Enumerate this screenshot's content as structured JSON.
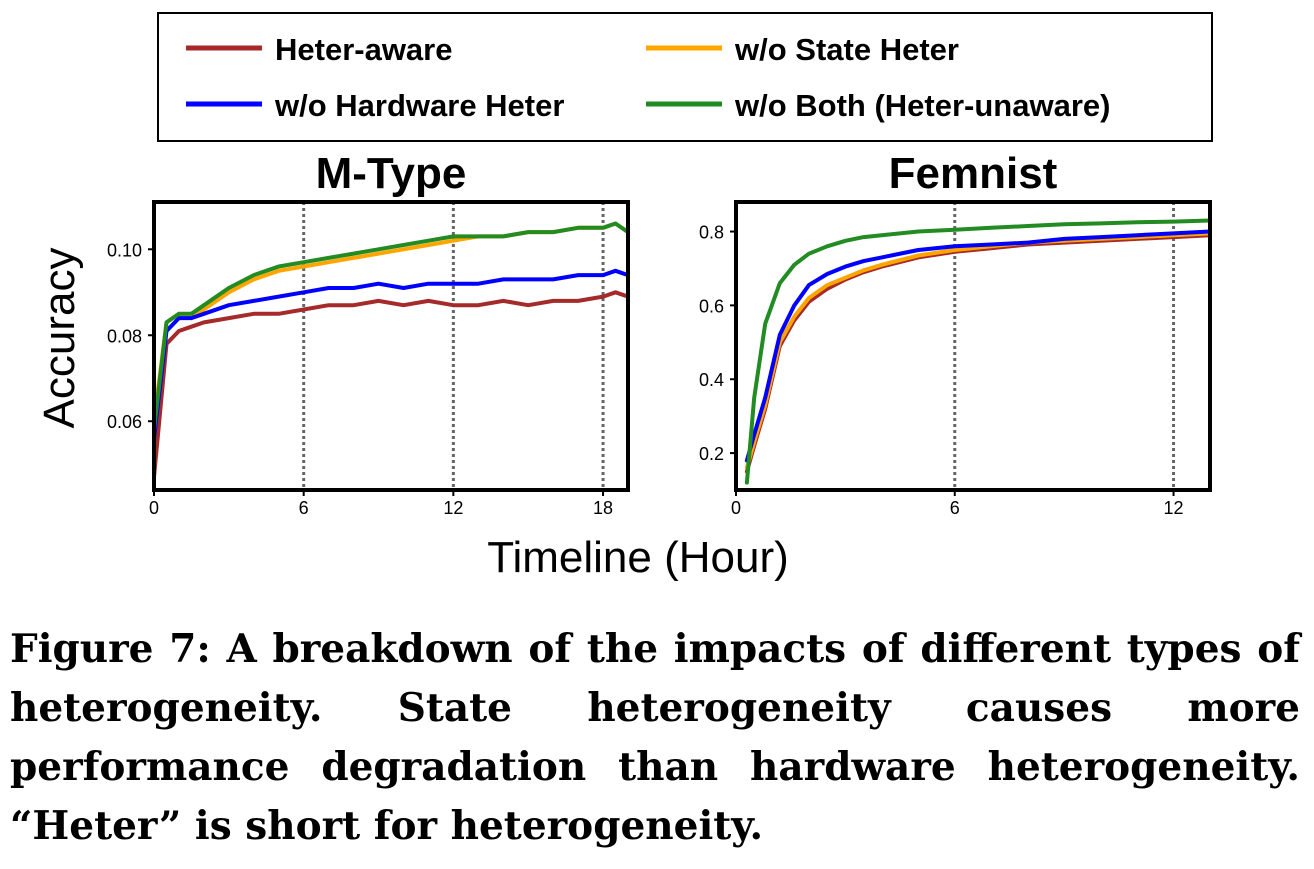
{
  "legend": {
    "items": [
      {
        "label": "Heter-aware",
        "color": "#a52a2a"
      },
      {
        "label": "w/o State Heter",
        "color": "#ffa500"
      },
      {
        "label": "w/o Hardware Heter",
        "color": "#0000ff"
      },
      {
        "label": "w/o Both (Heter-unaware)",
        "color": "#228b22"
      }
    ]
  },
  "shared_ylabel": "Accuracy",
  "shared_xlabel": "Timeline (Hour)",
  "chart_data": [
    {
      "type": "line",
      "title": "M-Type",
      "xlim": [
        0,
        19
      ],
      "ylim": [
        0.044,
        0.111
      ],
      "xticks": [
        0,
        6,
        12,
        18
      ],
      "xtick_labels": [
        "0",
        "6",
        "12",
        "18"
      ],
      "yticks": [
        0.06,
        0.08,
        0.1
      ],
      "ytick_labels": [
        "0.06",
        "0.08",
        "0.10"
      ],
      "vlines": [
        6,
        12,
        18
      ],
      "x": [
        0,
        0.5,
        1,
        1.5,
        2,
        3,
        4,
        5,
        6,
        7,
        8,
        9,
        10,
        11,
        12,
        13,
        14,
        15,
        16,
        17,
        18,
        18.5,
        19
      ],
      "series": [
        {
          "name": "Heter-aware",
          "color": "#a52a2a",
          "values": [
            0.047,
            0.078,
            0.081,
            0.082,
            0.083,
            0.084,
            0.085,
            0.085,
            0.086,
            0.087,
            0.087,
            0.088,
            0.087,
            0.088,
            0.087,
            0.087,
            0.088,
            0.087,
            0.088,
            0.088,
            0.089,
            0.09,
            0.089
          ]
        },
        {
          "name": "w/o State Heter",
          "color": "#ffa500",
          "values": [
            0.06,
            0.083,
            0.085,
            0.084,
            0.086,
            0.09,
            0.093,
            0.095,
            0.096,
            0.097,
            0.098,
            0.099,
            0.1,
            0.101,
            0.102,
            0.103,
            0.103,
            0.104,
            0.104,
            0.105,
            0.105,
            0.106,
            0.104
          ]
        },
        {
          "name": "w/o Hardware Heter",
          "color": "#0000ff",
          "values": [
            0.056,
            0.081,
            0.084,
            0.084,
            0.085,
            0.087,
            0.088,
            0.089,
            0.09,
            0.091,
            0.091,
            0.092,
            0.091,
            0.092,
            0.092,
            0.092,
            0.093,
            0.093,
            0.093,
            0.094,
            0.094,
            0.095,
            0.094
          ]
        },
        {
          "name": "w/o Both (Heter-unaware)",
          "color": "#228b22",
          "values": [
            0.058,
            0.083,
            0.085,
            0.085,
            0.087,
            0.091,
            0.094,
            0.096,
            0.097,
            0.098,
            0.099,
            0.1,
            0.101,
            0.102,
            0.103,
            0.103,
            0.103,
            0.104,
            0.104,
            0.105,
            0.105,
            0.106,
            0.104
          ]
        }
      ]
    },
    {
      "type": "line",
      "title": "Femnist",
      "xlim": [
        0,
        13
      ],
      "ylim": [
        0.1,
        0.88
      ],
      "xticks": [
        0,
        6,
        12
      ],
      "xtick_labels": [
        "0",
        "6",
        "12"
      ],
      "yticks": [
        0.2,
        0.4,
        0.6,
        0.8
      ],
      "ytick_labels": [
        "0.2",
        "0.4",
        "0.6",
        "0.8"
      ],
      "vlines": [
        6,
        12
      ],
      "x": [
        0.3,
        0.5,
        0.8,
        1.2,
        1.6,
        2,
        2.5,
        3,
        3.5,
        4,
        5,
        6,
        7,
        8,
        9,
        10,
        11,
        12,
        13
      ],
      "series": [
        {
          "name": "Heter-aware",
          "color": "#a52a2a",
          "values": [
            0.15,
            0.22,
            0.32,
            0.49,
            0.56,
            0.61,
            0.645,
            0.67,
            0.69,
            0.705,
            0.73,
            0.745,
            0.755,
            0.765,
            0.77,
            0.775,
            0.78,
            0.785,
            0.79
          ]
        },
        {
          "name": "w/o State Heter",
          "color": "#ffa500",
          "values": [
            0.16,
            0.23,
            0.33,
            0.5,
            0.57,
            0.62,
            0.655,
            0.675,
            0.695,
            0.71,
            0.735,
            0.75,
            0.76,
            0.77,
            0.775,
            0.78,
            0.785,
            0.79,
            0.795
          ]
        },
        {
          "name": "w/o Hardware Heter",
          "color": "#0000ff",
          "values": [
            0.18,
            0.25,
            0.35,
            0.52,
            0.6,
            0.655,
            0.685,
            0.705,
            0.72,
            0.73,
            0.75,
            0.76,
            0.765,
            0.77,
            0.78,
            0.785,
            0.79,
            0.795,
            0.8
          ]
        },
        {
          "name": "w/o Both (Heter-unaware)",
          "color": "#228b22",
          "values": [
            0.12,
            0.35,
            0.55,
            0.66,
            0.71,
            0.74,
            0.76,
            0.775,
            0.785,
            0.79,
            0.8,
            0.805,
            0.81,
            0.815,
            0.82,
            0.822,
            0.825,
            0.827,
            0.83
          ]
        }
      ]
    }
  ],
  "caption": "Figure 7: A breakdown of the impacts of different types of heterogeneity. State heterogeneity causes more performance degradation than hardware heterogeneity. “Heter” is short for heterogeneity."
}
